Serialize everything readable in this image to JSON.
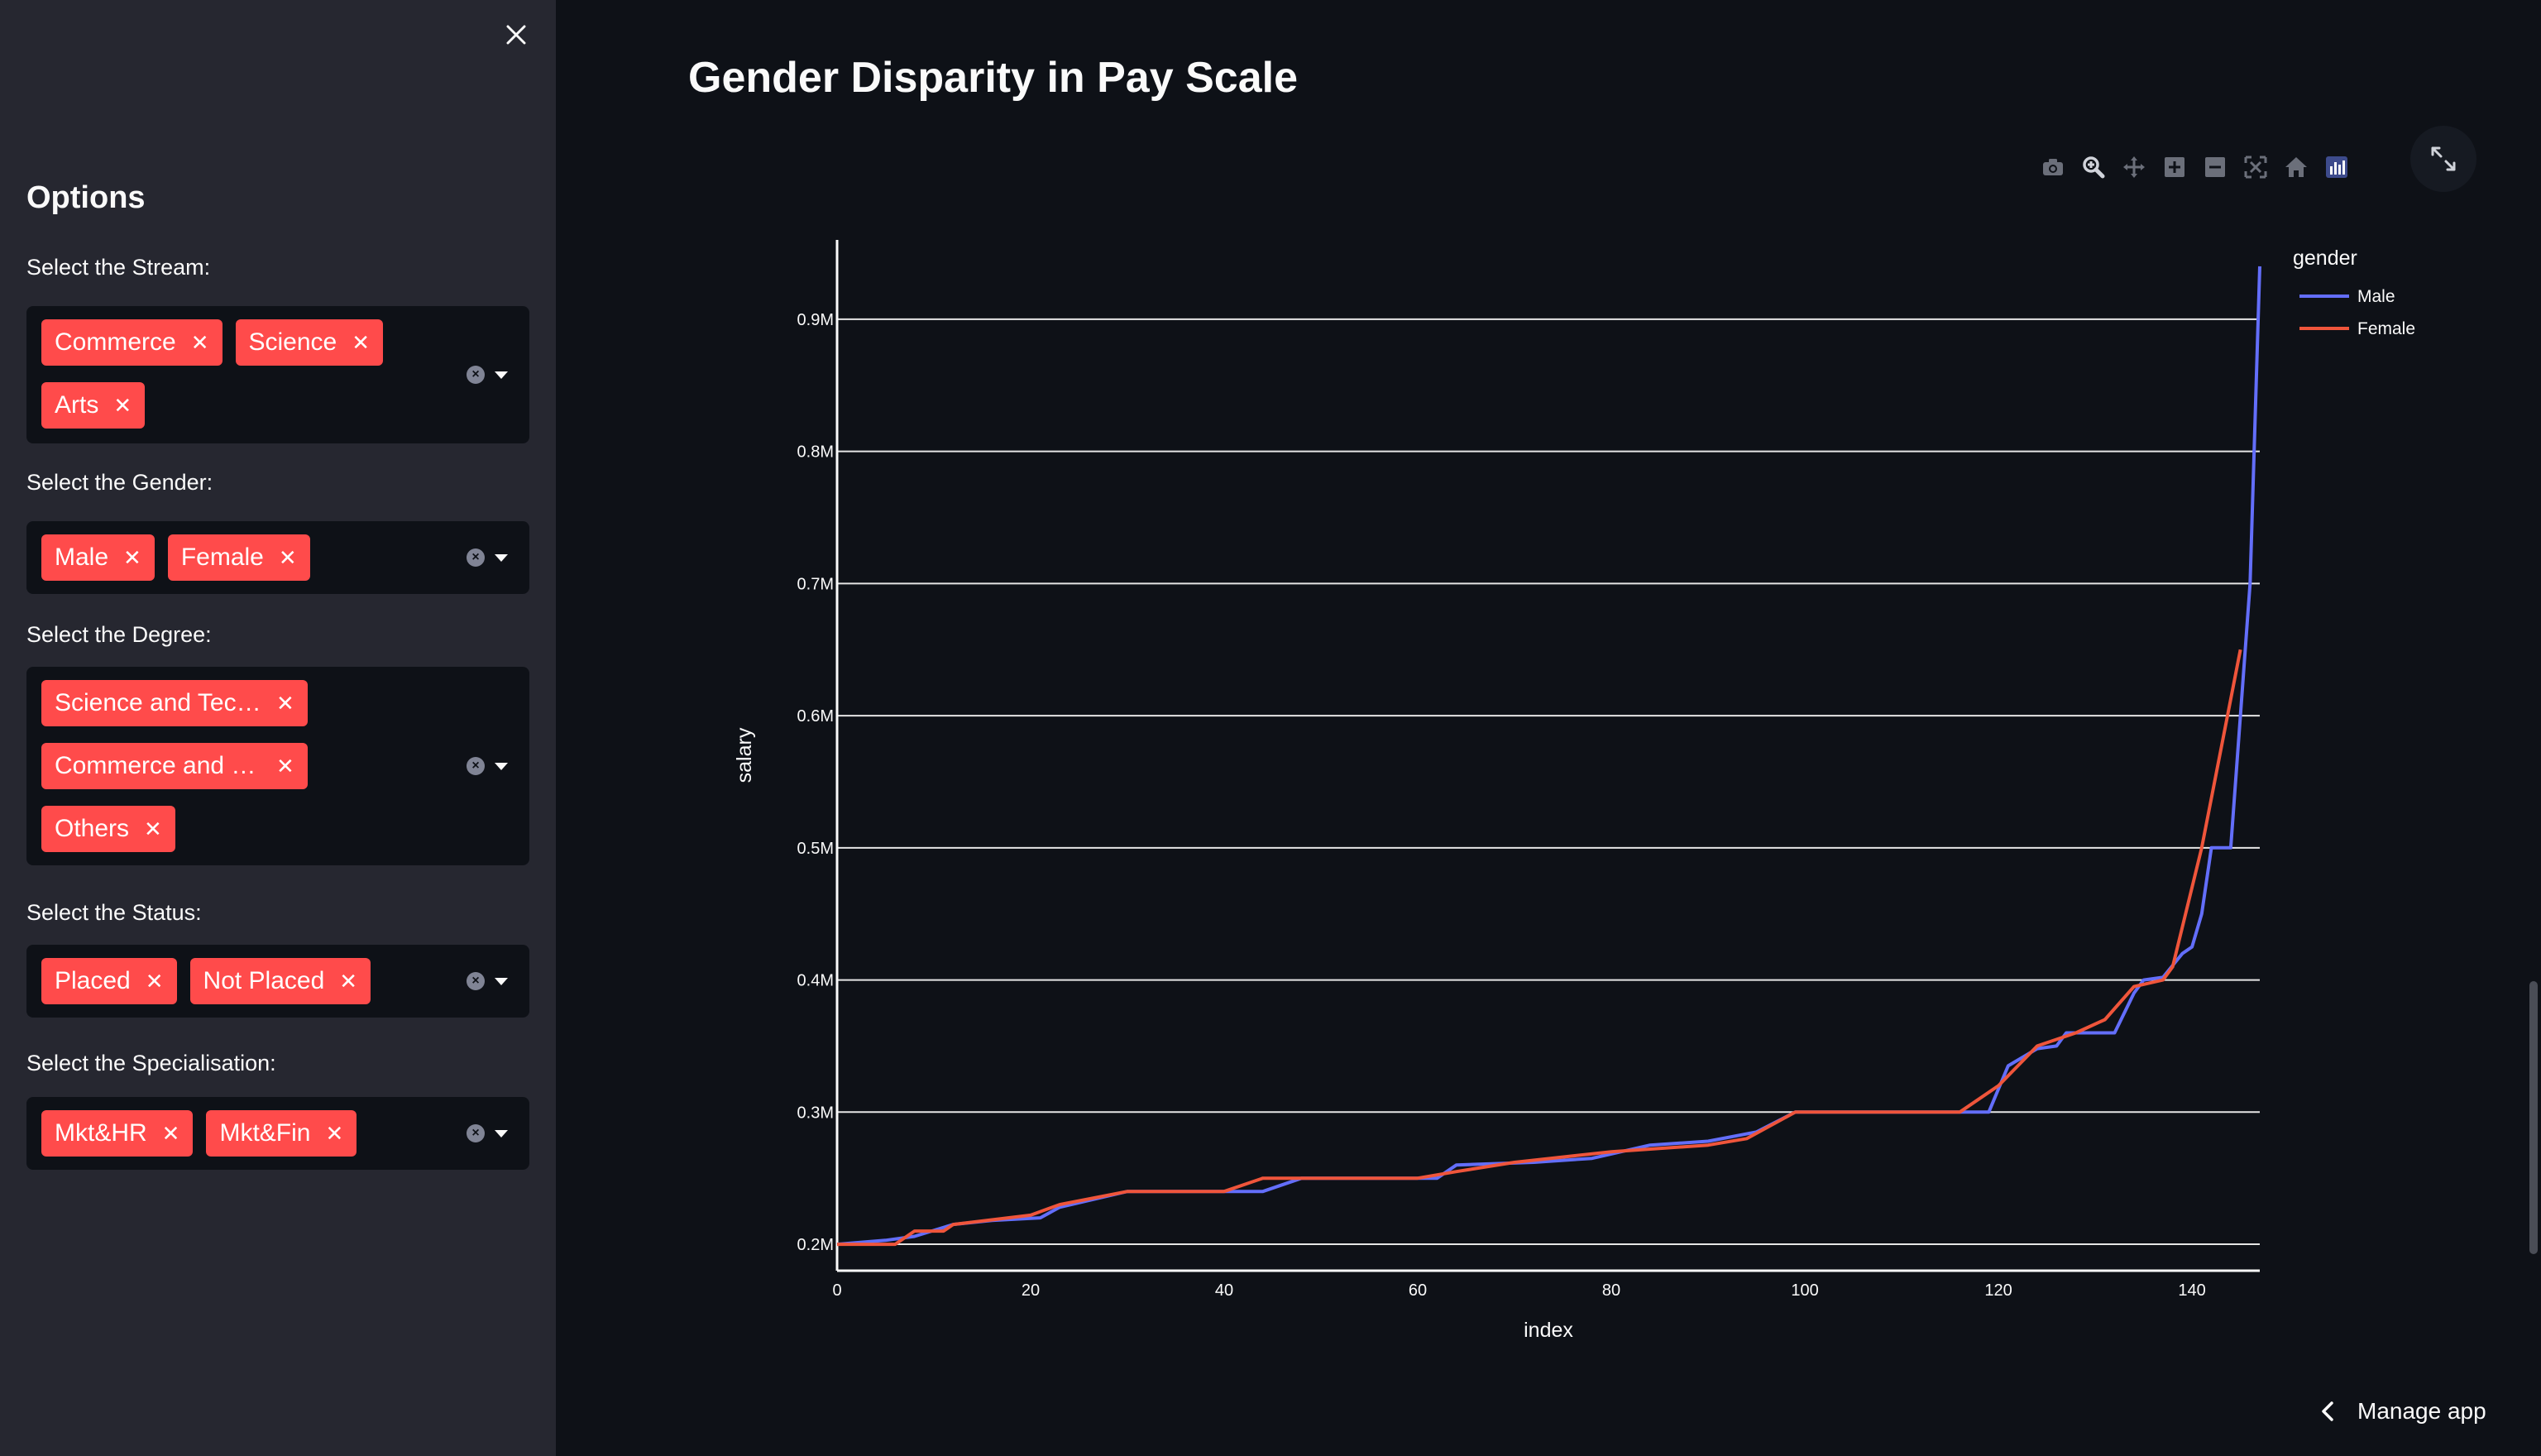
{
  "sidebar": {
    "title": "Options",
    "filters": [
      {
        "label": "Select the Stream:",
        "tags": [
          "Commerce",
          "Science",
          "Arts"
        ]
      },
      {
        "label": "Select the Gender:",
        "tags": [
          "Male",
          "Female"
        ]
      },
      {
        "label": "Select the Degree:",
        "tags": [
          "Science and Tec…",
          "Commerce and …",
          "Others"
        ]
      },
      {
        "label": "Select the Status:",
        "tags": [
          "Placed",
          "Not Placed"
        ]
      },
      {
        "label": "Select the Specialisation:",
        "tags": [
          "Mkt&HR",
          "Mkt&Fin"
        ]
      }
    ]
  },
  "main": {
    "title": "Gender Disparity in Pay Scale",
    "manage_app": "Manage app",
    "modebar_icons": [
      "camera-icon",
      "zoom-icon",
      "pan-icon",
      "zoom-in-icon",
      "zoom-out-icon",
      "autoscale-icon",
      "reset-axes-icon",
      "plotly-logo-icon"
    ]
  },
  "chart_data": {
    "type": "line",
    "title": "",
    "xlabel": "index",
    "ylabel": "salary",
    "xlim": [
      0,
      147
    ],
    "ylim": [
      0.18,
      0.96
    ],
    "x_ticks": [
      0,
      20,
      40,
      60,
      80,
      100,
      120,
      140
    ],
    "y_ticks": [
      0.2,
      0.3,
      0.4,
      0.5,
      0.6,
      0.7,
      0.8,
      0.9
    ],
    "y_tick_labels": [
      "0.2M",
      "0.3M",
      "0.4M",
      "0.5M",
      "0.6M",
      "0.7M",
      "0.8M",
      "0.9M"
    ],
    "legend_title": "gender",
    "legend_position": "top-right",
    "grid": "horizontal",
    "series": [
      {
        "name": "Male",
        "color": "#636efa",
        "points": [
          [
            0,
            0.2
          ],
          [
            5,
            0.203
          ],
          [
            8,
            0.206
          ],
          [
            12,
            0.215
          ],
          [
            16,
            0.218
          ],
          [
            21,
            0.22
          ],
          [
            23,
            0.228
          ],
          [
            30,
            0.24
          ],
          [
            40,
            0.24
          ],
          [
            44,
            0.24
          ],
          [
            48,
            0.25
          ],
          [
            62,
            0.25
          ],
          [
            64,
            0.26
          ],
          [
            72,
            0.262
          ],
          [
            78,
            0.265
          ],
          [
            84,
            0.275
          ],
          [
            90,
            0.278
          ],
          [
            95,
            0.285
          ],
          [
            99,
            0.3
          ],
          [
            110,
            0.3
          ],
          [
            119,
            0.3
          ],
          [
            121,
            0.335
          ],
          [
            124,
            0.348
          ],
          [
            126,
            0.35
          ],
          [
            127,
            0.36
          ],
          [
            132,
            0.36
          ],
          [
            134,
            0.39
          ],
          [
            135,
            0.4
          ],
          [
            137,
            0.402
          ],
          [
            139,
            0.42
          ],
          [
            140,
            0.425
          ],
          [
            141,
            0.45
          ],
          [
            142,
            0.5
          ],
          [
            144,
            0.5
          ],
          [
            145,
            0.6
          ],
          [
            146,
            0.7
          ],
          [
            147,
            0.94
          ]
        ]
      },
      {
        "name": "Female",
        "color": "#ef553b",
        "points": [
          [
            0,
            0.2
          ],
          [
            6,
            0.2
          ],
          [
            8,
            0.21
          ],
          [
            11,
            0.21
          ],
          [
            12,
            0.215
          ],
          [
            20,
            0.222
          ],
          [
            23,
            0.23
          ],
          [
            30,
            0.24
          ],
          [
            40,
            0.24
          ],
          [
            44,
            0.25
          ],
          [
            60,
            0.25
          ],
          [
            64,
            0.255
          ],
          [
            70,
            0.262
          ],
          [
            80,
            0.27
          ],
          [
            90,
            0.275
          ],
          [
            94,
            0.28
          ],
          [
            99,
            0.3
          ],
          [
            116,
            0.3
          ],
          [
            120,
            0.32
          ],
          [
            122,
            0.335
          ],
          [
            124,
            0.35
          ],
          [
            128,
            0.36
          ],
          [
            131,
            0.37
          ],
          [
            134,
            0.395
          ],
          [
            137,
            0.4
          ],
          [
            138,
            0.41
          ],
          [
            141,
            0.5
          ],
          [
            145,
            0.65
          ]
        ]
      }
    ]
  }
}
